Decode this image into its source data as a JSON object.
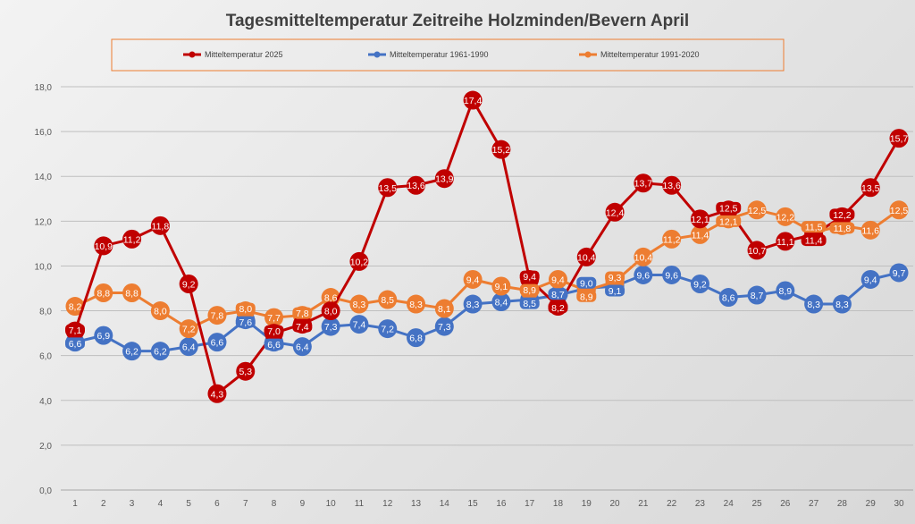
{
  "chart_data": {
    "type": "line",
    "title": "Tagesmitteltemperatur Zeitreihe Holzminden/Bevern April",
    "xlabel": "",
    "ylabel": "",
    "ylim": [
      0,
      18
    ],
    "yticks": [
      "0,0",
      "2,0",
      "4,0",
      "6,0",
      "8,0",
      "10,0",
      "12,0",
      "14,0",
      "16,0",
      "18,0"
    ],
    "x": [
      1,
      2,
      3,
      4,
      5,
      6,
      7,
      8,
      9,
      10,
      11,
      12,
      13,
      14,
      15,
      16,
      17,
      18,
      19,
      20,
      21,
      22,
      23,
      24,
      25,
      26,
      27,
      28,
      29,
      30
    ],
    "grid": true,
    "legend_position": "top",
    "series": [
      {
        "name": "Mitteltemperatur 2025",
        "color": "#c00000",
        "values": [
          7.1,
          10.9,
          11.2,
          11.8,
          9.2,
          4.3,
          5.3,
          7.0,
          7.4,
          8.0,
          10.2,
          13.5,
          13.6,
          13.9,
          17.4,
          15.2,
          9.4,
          8.2,
          10.4,
          12.4,
          13.7,
          13.6,
          12.1,
          12.5,
          10.7,
          11.1,
          11.4,
          12.2,
          13.5,
          15.7
        ]
      },
      {
        "name": "Mitteltemperatur 1961-1990",
        "color": "#4472c4",
        "values": [
          6.6,
          6.9,
          6.2,
          6.2,
          6.4,
          6.6,
          7.6,
          6.6,
          6.4,
          7.3,
          7.4,
          7.2,
          6.8,
          7.3,
          8.3,
          8.4,
          8.5,
          8.7,
          9.0,
          9.1,
          9.6,
          9.6,
          9.2,
          8.6,
          8.7,
          8.9,
          8.3,
          8.3,
          9.4,
          9.7
        ]
      },
      {
        "name": "Mitteltemperatur 1991-2020",
        "color": "#ed7d31",
        "values": [
          8.2,
          8.8,
          8.8,
          8.0,
          7.2,
          7.8,
          8.0,
          7.7,
          7.8,
          8.6,
          8.3,
          8.5,
          8.3,
          8.1,
          9.4,
          9.1,
          8.9,
          9.4,
          8.9,
          9.3,
          10.4,
          11.2,
          11.4,
          12.1,
          12.5,
          12.2,
          11.5,
          11.8,
          11.6,
          12.5
        ]
      }
    ]
  }
}
